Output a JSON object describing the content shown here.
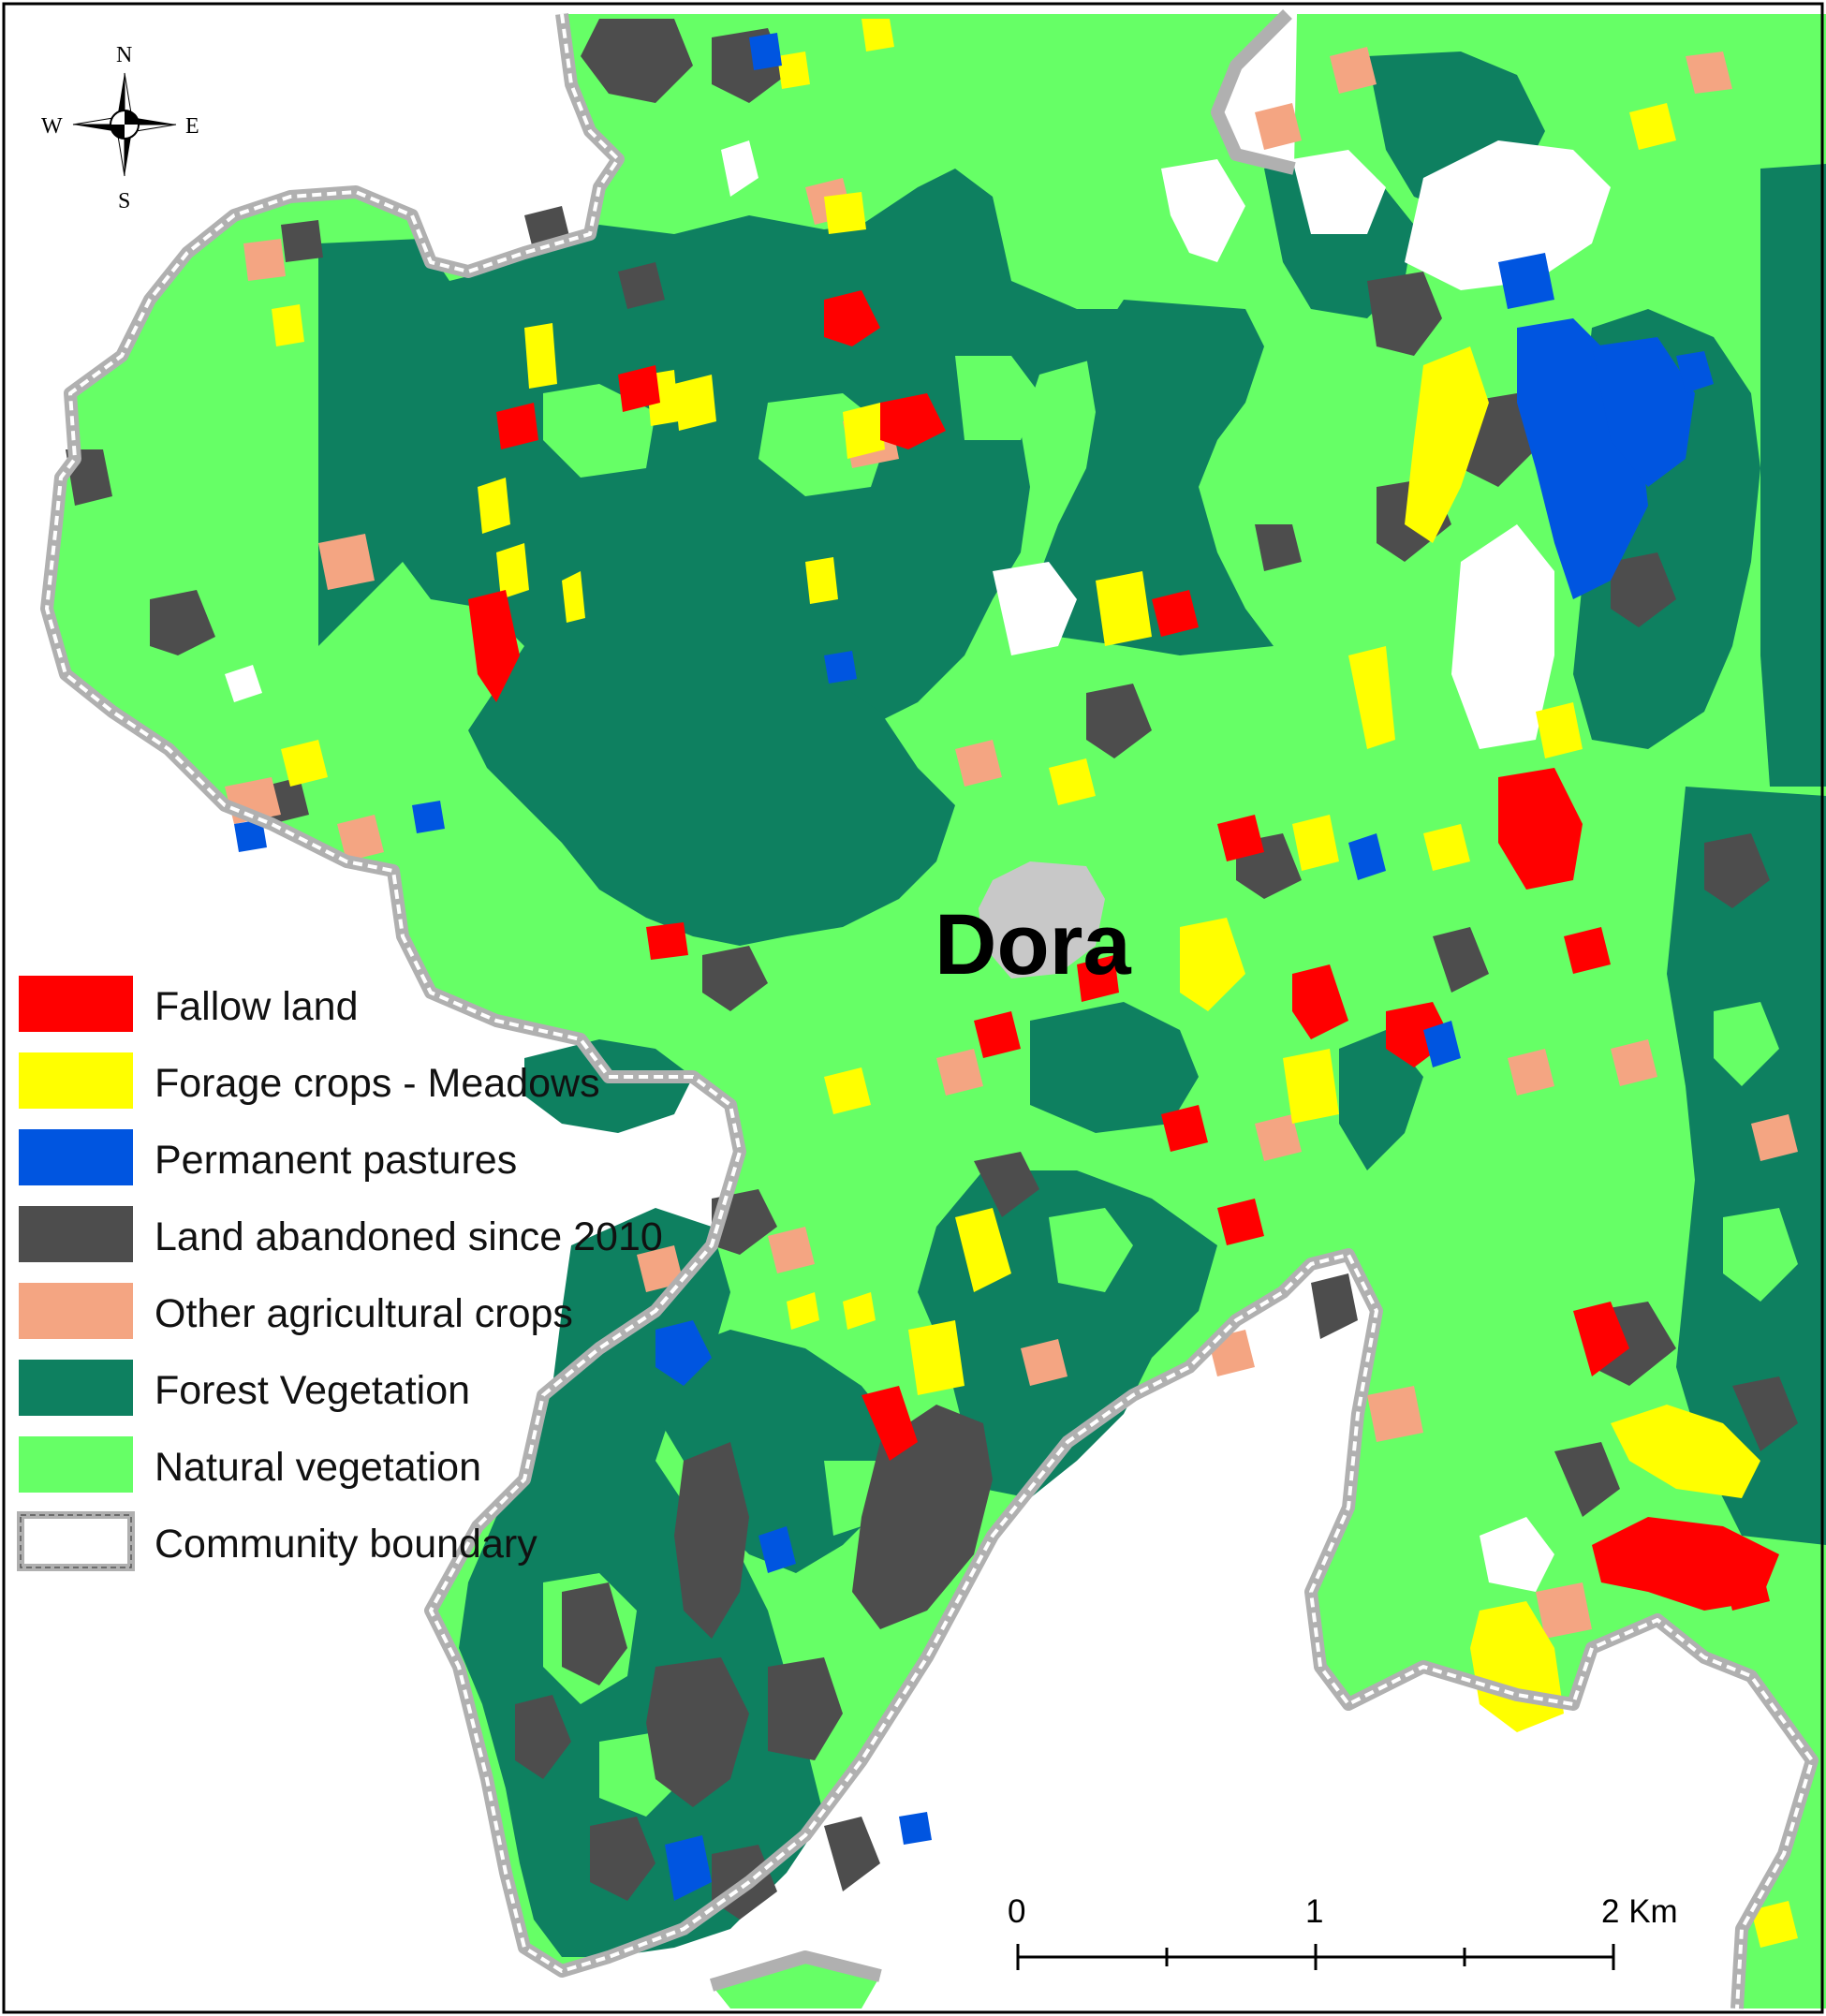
{
  "map": {
    "place_label": "Dora",
    "compass": {
      "north": "N",
      "south": "S",
      "east": "E",
      "west": "W"
    },
    "legend": [
      {
        "label": "Fallow land",
        "color": "#ff0000"
      },
      {
        "label": "Forage crops - Meadows",
        "color": "#ffff00"
      },
      {
        "label": "Permanent pastures",
        "color": "#0055e0"
      },
      {
        "label": "Land abandoned since 2010",
        "color": "#4d4d4d"
      },
      {
        "label": "Other agricultural crops",
        "color": "#f4a582"
      },
      {
        "label": "Forest Vegetation",
        "color": "#0e8060"
      },
      {
        "label": "Natural vegetation",
        "color": "#66ff66"
      },
      {
        "label": "Community boundary",
        "color": "#ffffff"
      }
    ],
    "scale_bar": {
      "labels": [
        "0",
        "1",
        "2 Km"
      ]
    },
    "colors": {
      "fallow": "#ff0000",
      "forage": "#ffff00",
      "pasture": "#0055e0",
      "abandoned": "#4d4d4d",
      "other_crops": "#f4a582",
      "forest": "#0e8060",
      "natural": "#66ff66",
      "urban": "#c8c8c8",
      "boundary": "#b0b0b0"
    }
  }
}
